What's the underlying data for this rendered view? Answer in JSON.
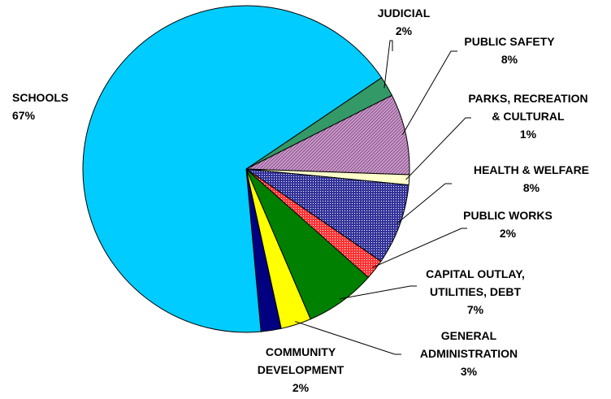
{
  "chart_data": {
    "type": "pie",
    "title": "",
    "slices": [
      {
        "lines": [
          "JUDICIAL",
          "2%"
        ],
        "value": 2,
        "color": "#339966",
        "pattern": "none"
      },
      {
        "lines": [
          "PUBLIC SAFETY",
          "8%"
        ],
        "value": 8,
        "color": "#CC99CC",
        "pattern": "diagonal"
      },
      {
        "lines": [
          "PARKS, RECREATION",
          "& CULTURAL",
          "1%"
        ],
        "value": 1,
        "color": "#FFFFCC",
        "pattern": "none"
      },
      {
        "lines": [
          "HEALTH & WELFARE",
          "8%"
        ],
        "value": 8,
        "color": "#333399",
        "pattern": "dots"
      },
      {
        "lines": [
          "PUBLIC WORKS",
          "2%"
        ],
        "value": 2,
        "color": "#FF3333",
        "pattern": "dots"
      },
      {
        "lines": [
          "CAPITAL OUTLAY,",
          "UTILITIES, DEBT",
          "7%"
        ],
        "value": 7,
        "color": "#008000",
        "pattern": "none"
      },
      {
        "lines": [
          "GENERAL",
          "ADMINISTRATION",
          "3%"
        ],
        "value": 3,
        "color": "#FFFF00",
        "pattern": "none"
      },
      {
        "lines": [
          "COMMUNITY",
          "DEVELOPMENT",
          "2%"
        ],
        "value": 2,
        "color": "#000080",
        "pattern": "none"
      },
      {
        "lines": [
          "SCHOOLS",
          "67%"
        ],
        "value": 67,
        "color": "#00CCFF",
        "pattern": "none"
      }
    ]
  }
}
